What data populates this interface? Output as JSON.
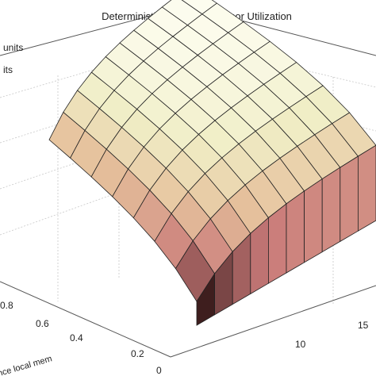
{
  "chart_data": {
    "type": "surface",
    "title": "Deterministic Model: Processor Utilization",
    "legend": {
      "placement": "top-left",
      "entries": [
        "units",
        "its"
      ]
    },
    "x_axis": {
      "label": "",
      "ticks": [
        10,
        15
      ]
    },
    "y_axis": {
      "label": "nce local mem",
      "ticks": [
        "0",
        "0.2",
        "0.4",
        "0.6",
        "0.8"
      ]
    },
    "z_axis": {
      "label": "",
      "ticks": []
    },
    "grid": true,
    "x_count": 11,
    "y_count": 8,
    "colormap": [
      "#3e1e1e",
      "#c97a79",
      "#e6c29d",
      "#f0eec6",
      "#fffff6"
    ],
    "surface_edge_color": "#222222"
  }
}
